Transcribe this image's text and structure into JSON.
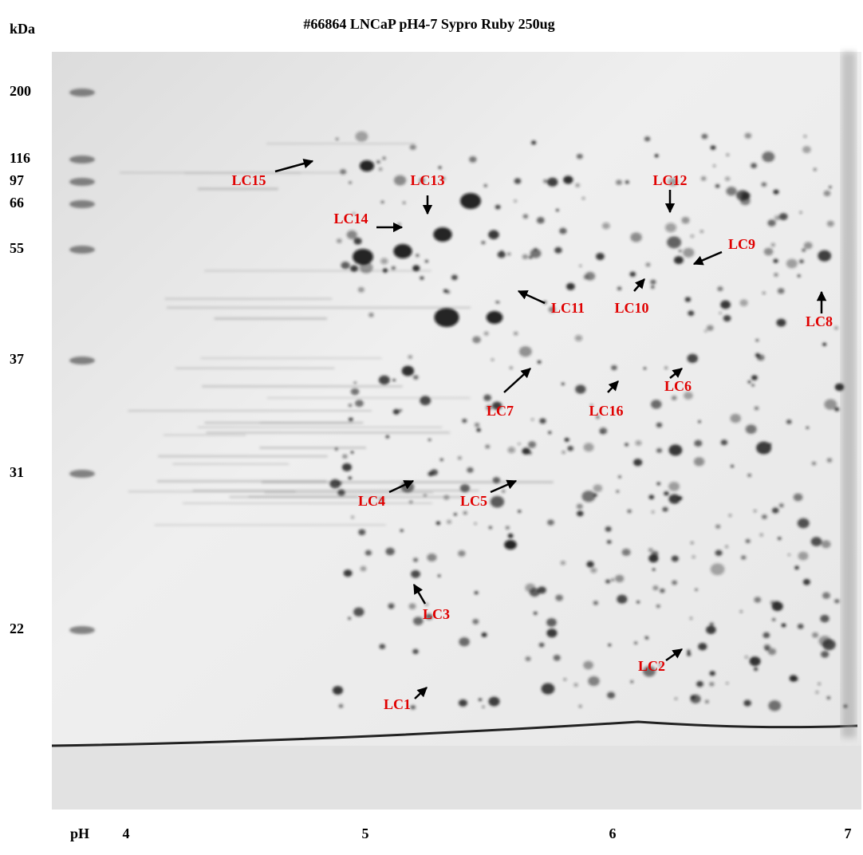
{
  "header": {
    "title": "#66864 LNCaP  pH4-7 Sypro Ruby 250ug",
    "y_axis_label": "kDa"
  },
  "mw_markers": [
    "200",
    "116",
    "97",
    "66",
    "55",
    "37",
    "31",
    "22"
  ],
  "ph_axis": {
    "label": "pH",
    "ticks": [
      "4",
      "5",
      "6",
      "7"
    ]
  },
  "spot_labels": [
    "LC1",
    "LC2",
    "LC3",
    "LC4",
    "LC5",
    "LC6",
    "LC7",
    "LC8",
    "LC9",
    "LC10",
    "LC11",
    "LC12",
    "LC13",
    "LC14",
    "LC15",
    "LC16"
  ]
}
